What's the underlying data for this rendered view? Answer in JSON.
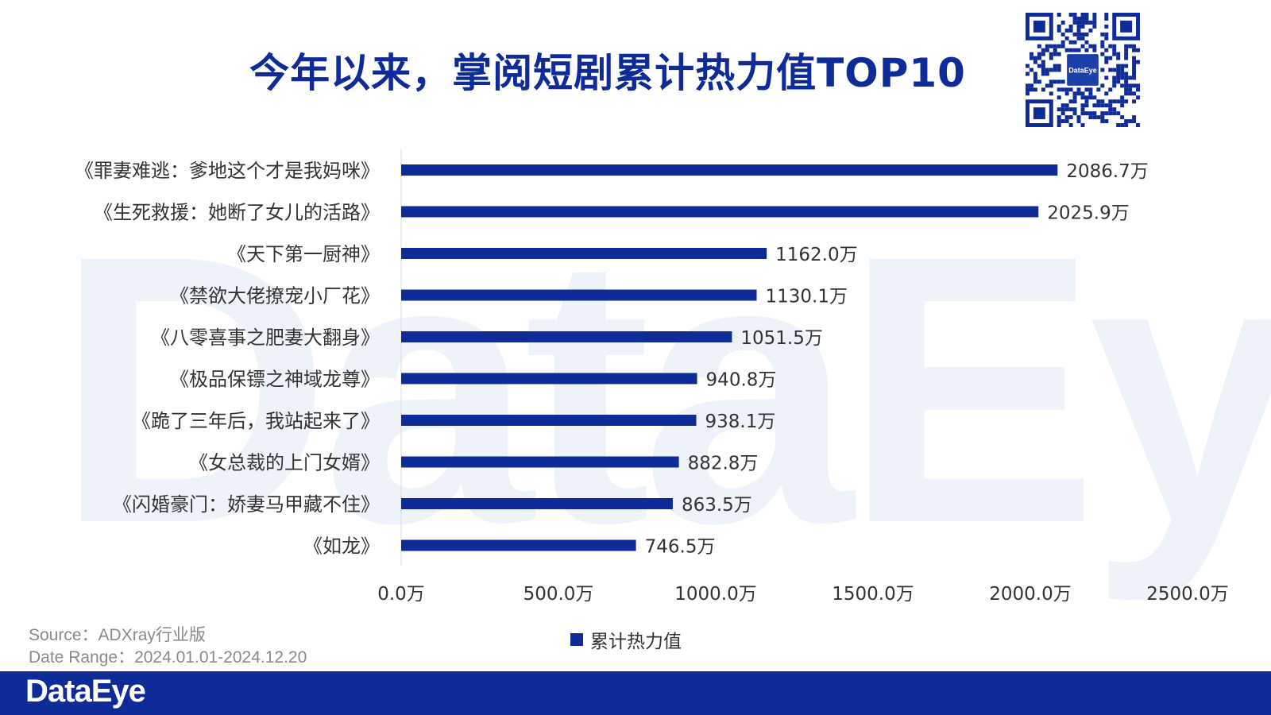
{
  "brand": {
    "watermark": "DataEye",
    "footer_logo": "DataEye",
    "qr_badge": "DataEye"
  },
  "colors": {
    "bar": "#0f2b98",
    "title": "#0f2b98",
    "footer": "#0f2b98",
    "axis_text": "#333333",
    "source_text": "#8a8a8a"
  },
  "source": {
    "line1": "Source：ADXray行业版",
    "line2": "Date Range：2024.01.01-2024.12.20"
  },
  "chart_data": {
    "type": "bar",
    "orientation": "horizontal",
    "title": "今年以来，掌阅短剧累计热力值TOP10",
    "categories": [
      "《罪妻难逃：爹地这个才是我妈咪》",
      "《生死救援：她断了女儿的活路》",
      "《天下第一厨神》",
      "《禁欲大佬撩宠小厂花》",
      "《八零喜事之肥妻大翻身》",
      "《极品保镖之神域龙尊》",
      "《跪了三年后，我站起来了》",
      "《女总裁的上门女婿》",
      "《闪婚豪门：娇妻马甲藏不住》",
      "《如龙》"
    ],
    "series": [
      {
        "name": "累计热力值",
        "values": [
          2086.7,
          2025.9,
          1162.0,
          1130.1,
          1051.5,
          940.8,
          938.1,
          882.8,
          863.5,
          746.5
        ],
        "labels": [
          "2086.7万",
          "2025.9万",
          "1162.0万",
          "1130.1万",
          "1051.5万",
          "940.8万",
          "938.1万",
          "882.8万",
          "863.5万",
          "746.5万"
        ]
      }
    ],
    "xlim": [
      0,
      2500
    ],
    "xticks": [
      0,
      500,
      1000,
      1500,
      2000,
      2500
    ],
    "xtick_labels": [
      "0.0万",
      "500.0万",
      "1000.0万",
      "1500.0万",
      "2000.0万",
      "2500.0万"
    ],
    "xlabel": "",
    "ylabel": "",
    "grid": false,
    "legend": "bottom"
  }
}
